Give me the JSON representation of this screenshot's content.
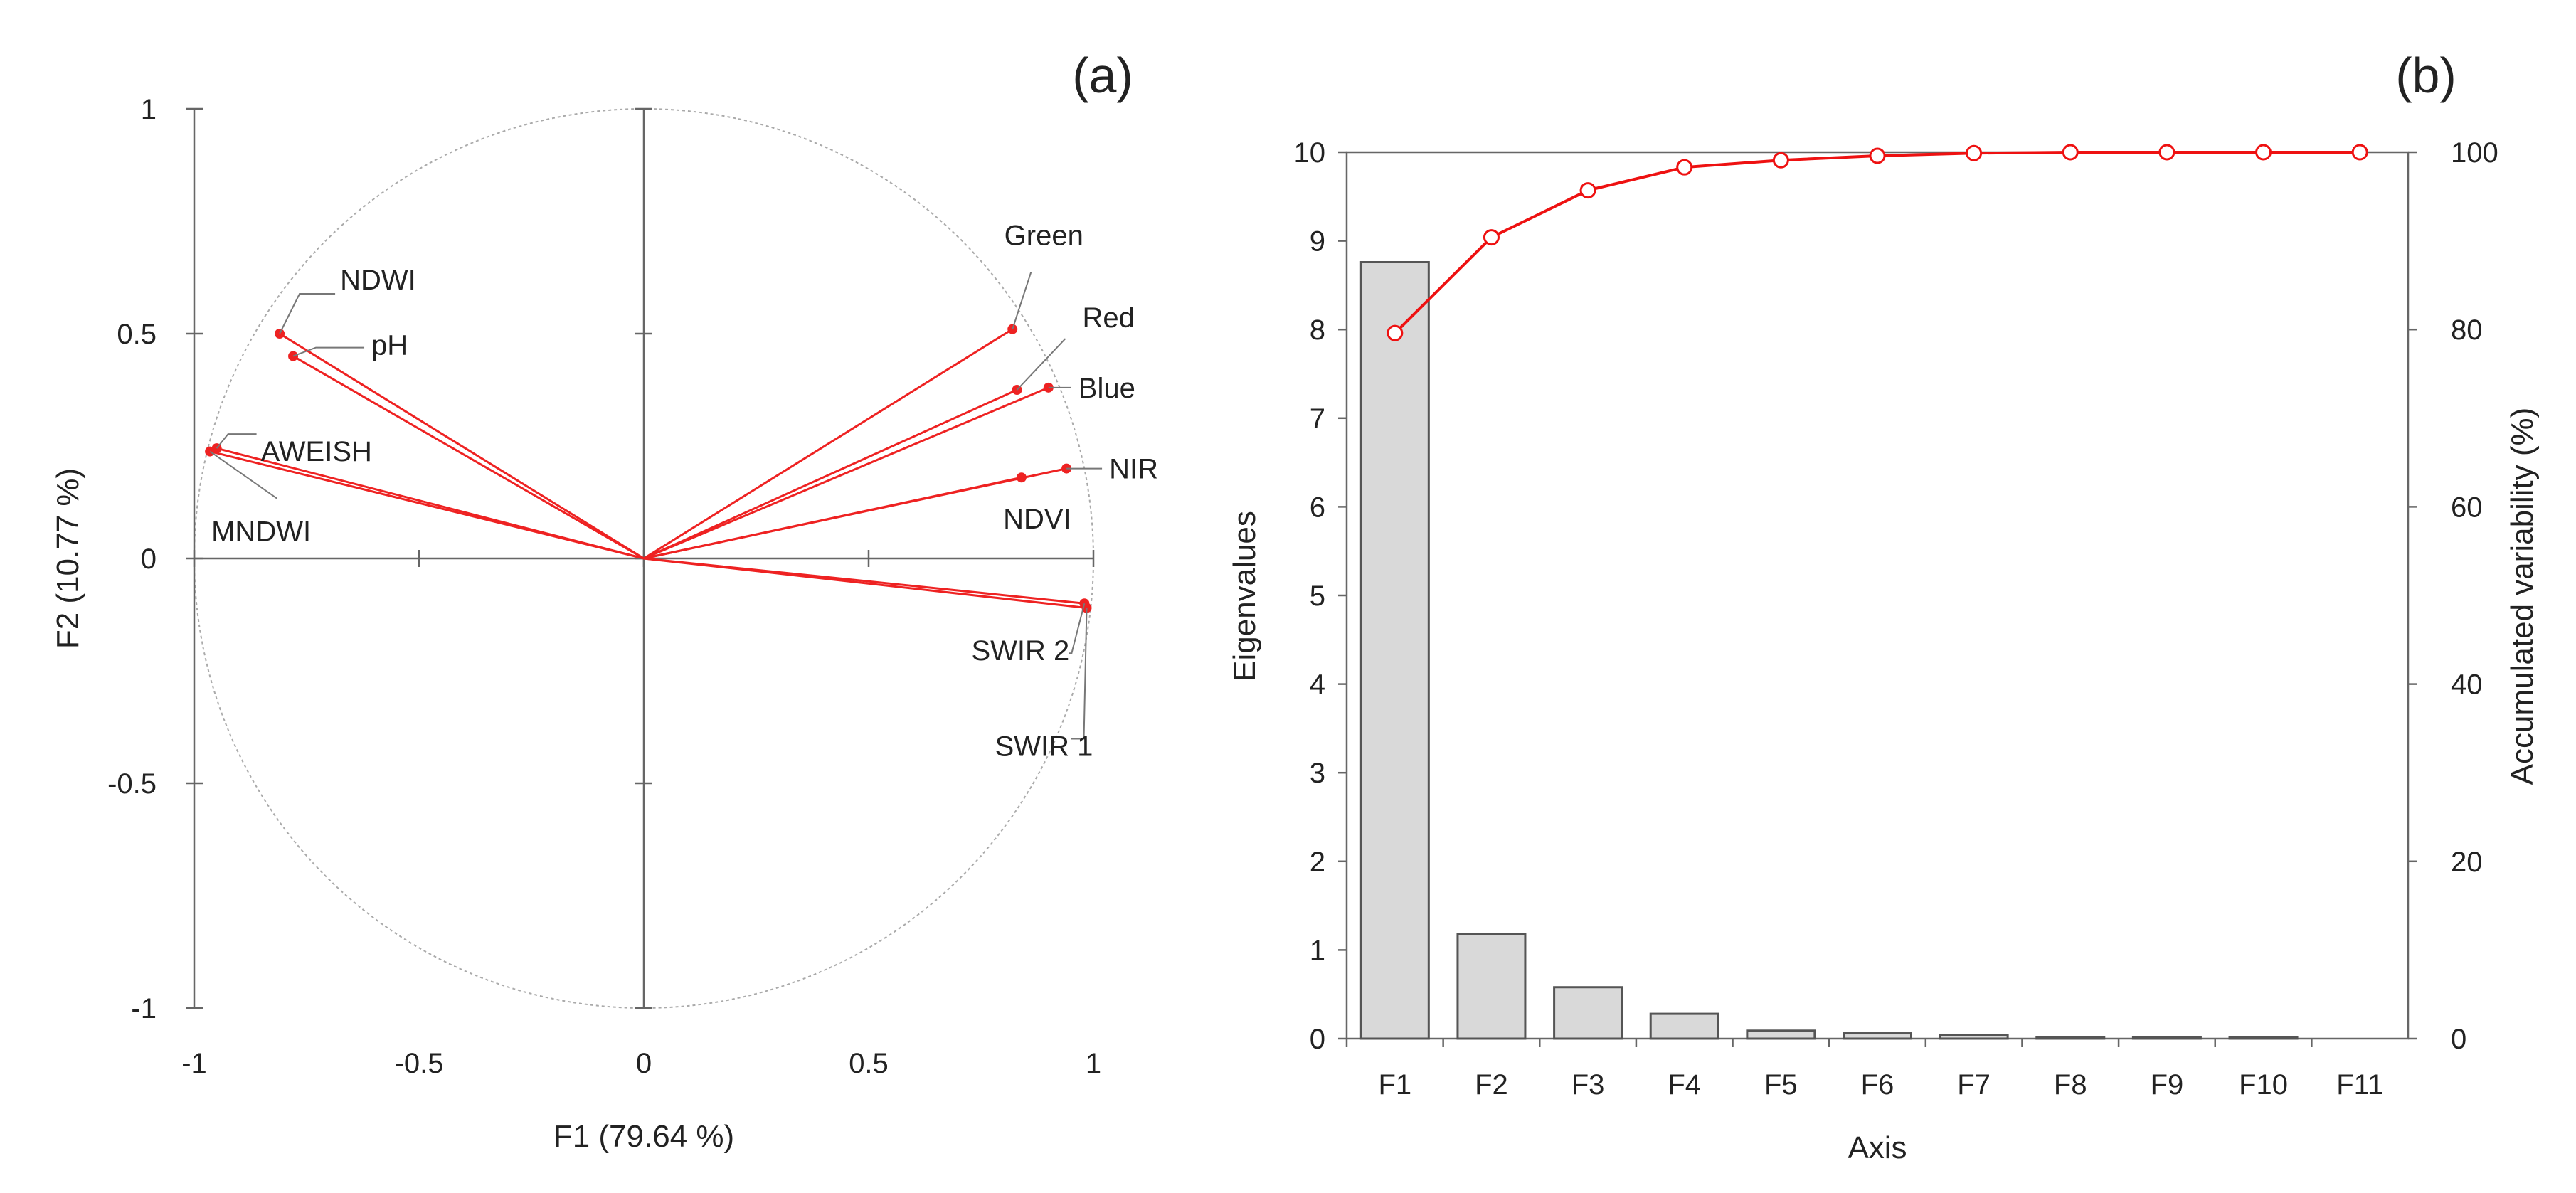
{
  "colors": {
    "vector": "#ee2222",
    "line": "#ee1111",
    "bar_fill": "#d9d9d9",
    "bar_stroke": "#555555",
    "axis": "#666666",
    "circle": "#aaaaaa",
    "marker_fill": "#ffffff"
  },
  "chart_data": [
    {
      "type": "scatter",
      "subtype": "correlation-circle",
      "panel_label": "(a)",
      "xlabel": "F1 (79.64 %)",
      "ylabel": "F2 (10.77 %)",
      "xlim": [
        -1,
        1
      ],
      "ylim": [
        -1,
        1
      ],
      "x_ticks": [
        -1,
        -0.5,
        0,
        0.5,
        1
      ],
      "x_tick_labels": [
        "-1",
        "-0.5",
        "0",
        "0.5",
        "1"
      ],
      "y_ticks": [
        -1,
        -0.5,
        0,
        0.5,
        1
      ],
      "y_tick_labels": [
        "-1",
        "-0.5",
        "0",
        "0.5",
        "1"
      ],
      "variables": [
        {
          "name": "NDWI",
          "x": -0.81,
          "y": 0.5
        },
        {
          "name": "pH",
          "x": -0.78,
          "y": 0.45
        },
        {
          "name": "AWEISH",
          "x": -0.95,
          "y": 0.245
        },
        {
          "name": "MNDWI",
          "x": -0.965,
          "y": 0.238
        },
        {
          "name": "Green",
          "x": 0.82,
          "y": 0.51
        },
        {
          "name": "Red",
          "x": 0.83,
          "y": 0.375
        },
        {
          "name": "Blue",
          "x": 0.9,
          "y": 0.38
        },
        {
          "name": "NIR",
          "x": 0.94,
          "y": 0.2
        },
        {
          "name": "NDVI",
          "x": 0.84,
          "y": 0.18
        },
        {
          "name": "SWIR 2",
          "x": 0.98,
          "y": -0.1
        },
        {
          "name": "SWIR 1",
          "x": 0.985,
          "y": -0.11
        }
      ]
    },
    {
      "type": "bar",
      "subtype": "scree-plot-with-cumulative-line",
      "panel_label": "(b)",
      "xlabel": "Axis",
      "ylabel": "Eigenvalues",
      "y2label": "Accumulated variability (%)",
      "categories": [
        "F1",
        "F2",
        "F3",
        "F4",
        "F5",
        "F6",
        "F7",
        "F8",
        "F9",
        "F10",
        "F11"
      ],
      "ylim": [
        0,
        10
      ],
      "y_ticks": [
        0,
        1,
        2,
        3,
        4,
        5,
        6,
        7,
        8,
        9,
        10
      ],
      "y2lim": [
        0,
        100
      ],
      "y2_ticks": [
        0,
        20,
        40,
        60,
        80,
        100
      ],
      "series": [
        {
          "name": "Eigenvalues",
          "type": "bar",
          "axis": "left",
          "values": [
            8.76,
            1.18,
            0.58,
            0.28,
            0.09,
            0.06,
            0.04,
            0.02,
            0.02,
            0.02,
            0.0
          ]
        },
        {
          "name": "Accumulated variability (%)",
          "type": "line",
          "axis": "right",
          "values": [
            79.6,
            90.4,
            95.7,
            98.3,
            99.1,
            99.6,
            99.9,
            100,
            100,
            100,
            100
          ]
        }
      ]
    }
  ]
}
